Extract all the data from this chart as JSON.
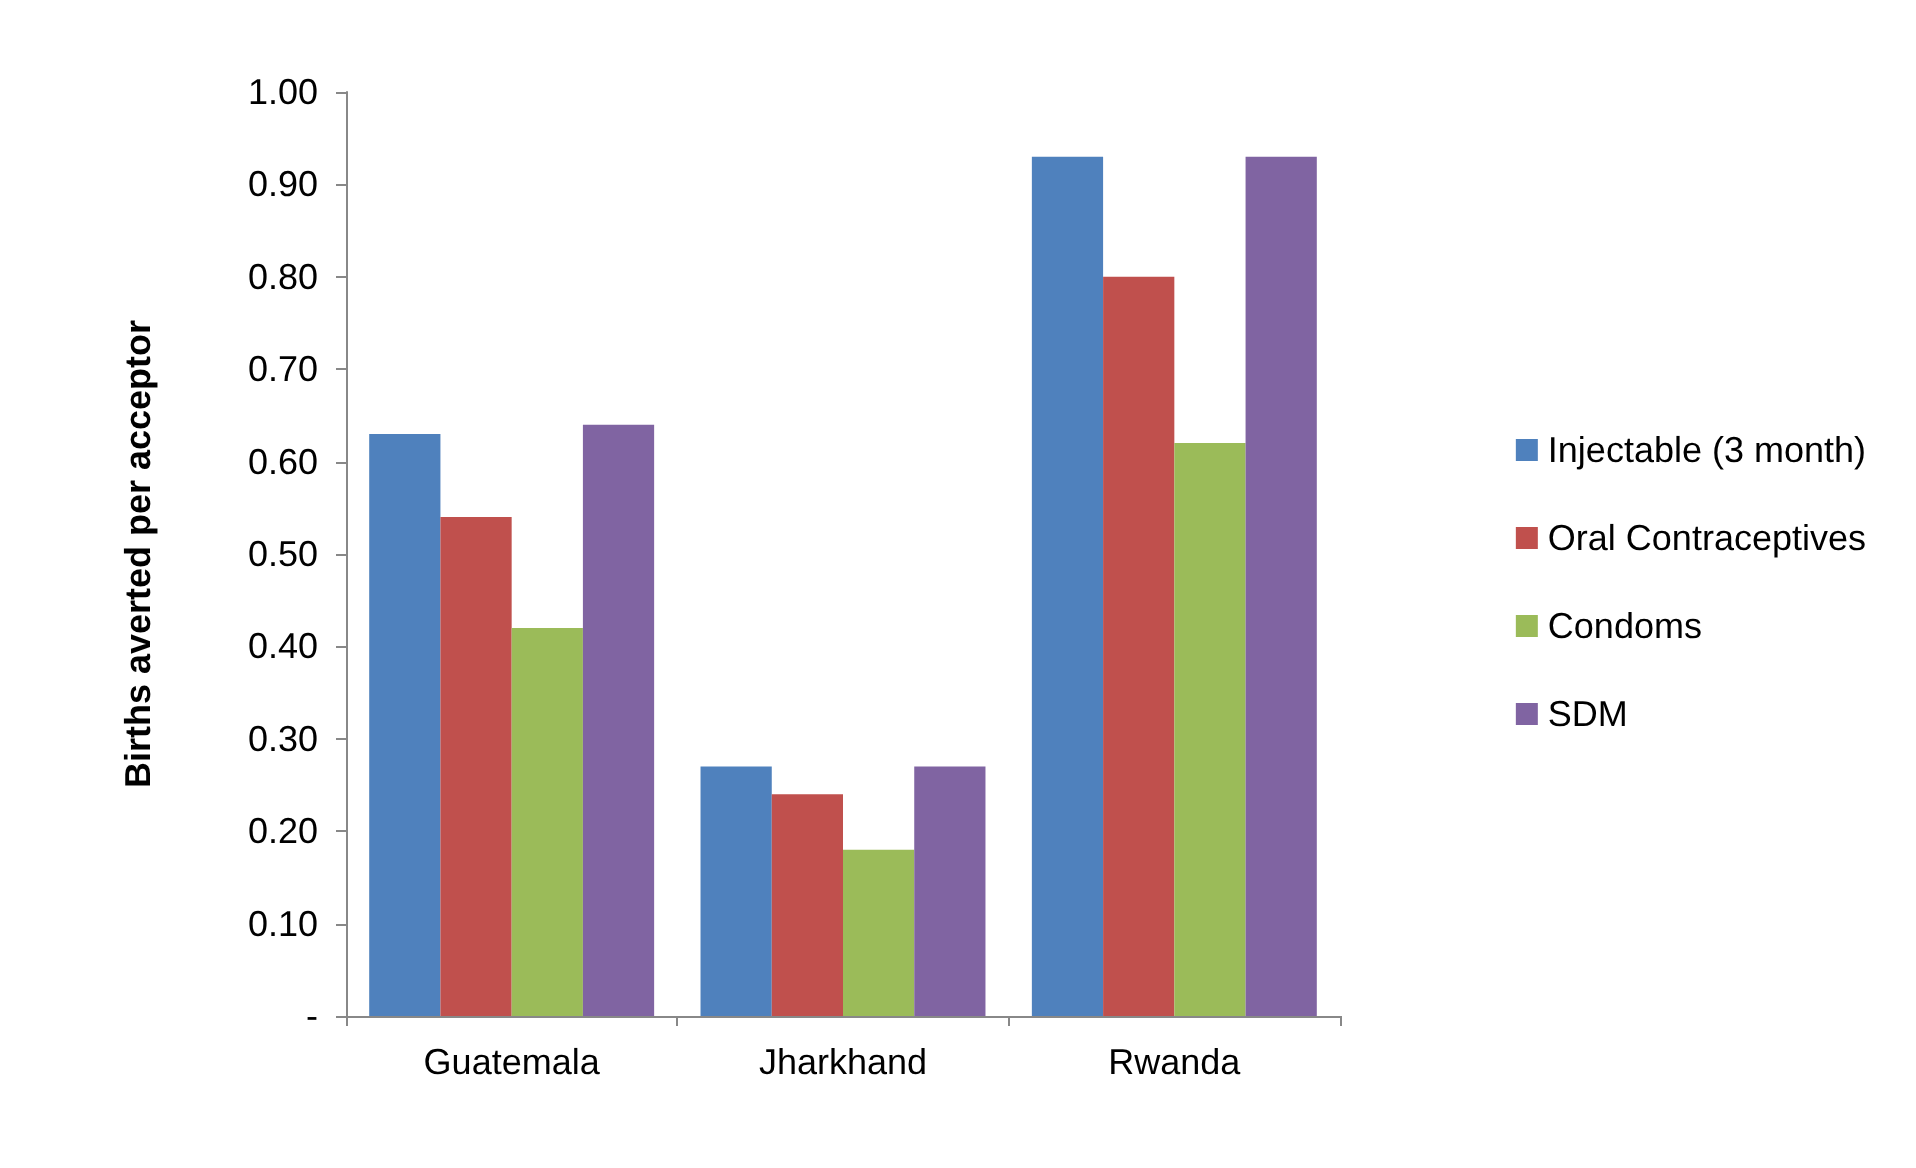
{
  "chart_data": {
    "type": "bar",
    "ylabel": "Births averted per acceptor",
    "categories": [
      "Guatemala",
      "Jharkhand",
      "Rwanda"
    ],
    "series": [
      {
        "name": "Injectable (3 month)",
        "color": "#4f81bd",
        "values": [
          0.63,
          0.27,
          0.93
        ]
      },
      {
        "name": "Oral Contraceptives",
        "color": "#c0504d",
        "values": [
          0.54,
          0.24,
          0.8
        ]
      },
      {
        "name": "Condoms",
        "color": "#9bbb59",
        "values": [
          0.42,
          0.18,
          0.62
        ]
      },
      {
        "name": "SDM",
        "color": "#8064a2",
        "values": [
          0.64,
          0.27,
          0.93
        ]
      }
    ],
    "ylim": [
      0,
      1
    ],
    "yticks": [
      {
        "value": 0,
        "label": "-"
      },
      {
        "value": 0.1,
        "label": "0.10"
      },
      {
        "value": 0.2,
        "label": "0.20"
      },
      {
        "value": 0.3,
        "label": "0.30"
      },
      {
        "value": 0.4,
        "label": "0.40"
      },
      {
        "value": 0.5,
        "label": "0.50"
      },
      {
        "value": 0.6,
        "label": "0.60"
      },
      {
        "value": 0.7,
        "label": "0.70"
      },
      {
        "value": 0.8,
        "label": "0.80"
      },
      {
        "value": 0.9,
        "label": "0.90"
      },
      {
        "value": 1,
        "label": "1.00"
      }
    ],
    "grid": false,
    "legend": "right"
  }
}
